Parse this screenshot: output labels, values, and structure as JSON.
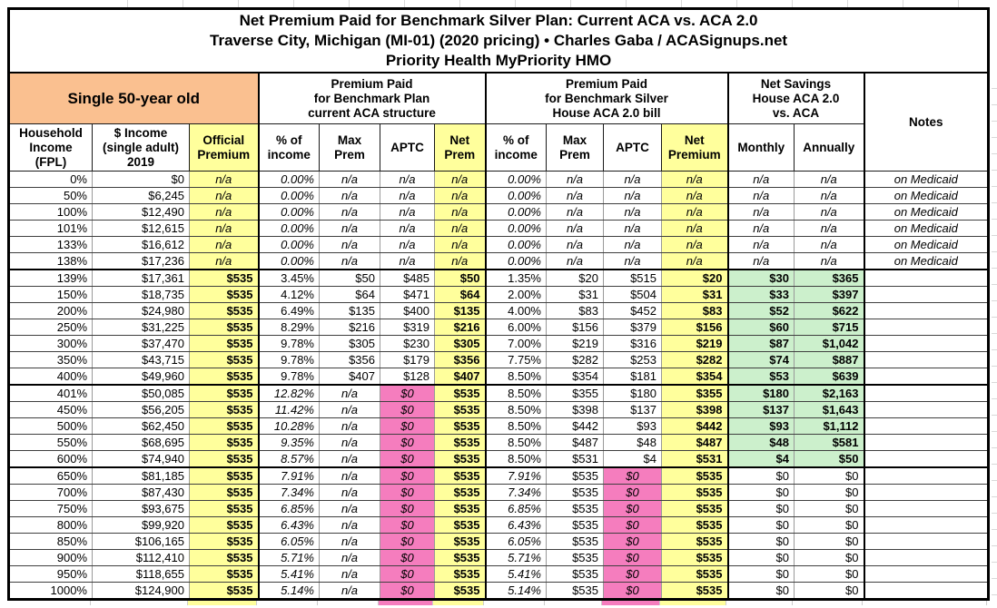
{
  "title": {
    "line1": "Net Premium Paid for Benchmark Silver Plan: Current ACA vs. ACA 2.0",
    "line2": "Traverse City, Michigan (MI-01) (2020 pricing) • Charles Gaba / ACASignups.net",
    "line3": "Priority Health MyPriority HMO"
  },
  "colors": {
    "person_header": "#FAC090",
    "highlight_yellow": "#FFFF9C",
    "highlight_pink": "#F57DBE",
    "savings_green": "#CCF0CC"
  },
  "header": {
    "group_person": "Single 50-year old",
    "group_aca": "Premium Paid\nfor Benchmark Plan\ncurrent ACA structure",
    "group_aca2": "Premium Paid\nfor Benchmark Silver\nHouse ACA 2.0 bill",
    "group_savings": "Net Savings\nHouse ACA 2.0\nvs. ACA",
    "notes": "Notes",
    "columns": [
      "Household\nIncome\n(FPL)",
      "$ Income\n(single adult)\n2019",
      "Official\nPremium",
      "% of\nincome",
      "Max\nPrem",
      "APTC",
      "Net\nPrem",
      "% of\nincome",
      "Max\nPrem",
      "APTC",
      "Net\nPremium",
      "Monthly",
      "Annually"
    ]
  },
  "table": {
    "rows": [
      {
        "band": "medicaid",
        "cells": [
          "0%",
          "$0",
          "n/a",
          "0.00%",
          "n/a",
          "n/a",
          "n/a",
          "0.00%",
          "n/a",
          "n/a",
          "n/a",
          "n/a",
          "n/a",
          "on Medicaid"
        ]
      },
      {
        "band": "medicaid",
        "cells": [
          "50%",
          "$6,245",
          "n/a",
          "0.00%",
          "n/a",
          "n/a",
          "n/a",
          "0.00%",
          "n/a",
          "n/a",
          "n/a",
          "n/a",
          "n/a",
          "on Medicaid"
        ]
      },
      {
        "band": "medicaid",
        "cells": [
          "100%",
          "$12,490",
          "n/a",
          "0.00%",
          "n/a",
          "n/a",
          "n/a",
          "0.00%",
          "n/a",
          "n/a",
          "n/a",
          "n/a",
          "n/a",
          "on Medicaid"
        ]
      },
      {
        "band": "medicaid",
        "cells": [
          "101%",
          "$12,615",
          "n/a",
          "0.00%",
          "n/a",
          "n/a",
          "n/a",
          "0.00%",
          "n/a",
          "n/a",
          "n/a",
          "n/a",
          "n/a",
          "on Medicaid"
        ]
      },
      {
        "band": "medicaid",
        "cells": [
          "133%",
          "$16,612",
          "n/a",
          "0.00%",
          "n/a",
          "n/a",
          "n/a",
          "0.00%",
          "n/a",
          "n/a",
          "n/a",
          "n/a",
          "n/a",
          "on Medicaid"
        ]
      },
      {
        "band": "medicaid",
        "cells": [
          "138%",
          "$17,236",
          "n/a",
          "0.00%",
          "n/a",
          "n/a",
          "n/a",
          "0.00%",
          "n/a",
          "n/a",
          "n/a",
          "n/a",
          "n/a",
          "on Medicaid"
        ]
      },
      {
        "band": "both",
        "cells": [
          "139%",
          "$17,361",
          "$535",
          "3.45%",
          "$50",
          "$485",
          "$50",
          "1.35%",
          "$20",
          "$515",
          "$20",
          "$30",
          "$365",
          ""
        ]
      },
      {
        "band": "both",
        "cells": [
          "150%",
          "$18,735",
          "$535",
          "4.12%",
          "$64",
          "$471",
          "$64",
          "2.00%",
          "$31",
          "$504",
          "$31",
          "$33",
          "$397",
          ""
        ]
      },
      {
        "band": "both",
        "cells": [
          "200%",
          "$24,980",
          "$535",
          "6.49%",
          "$135",
          "$400",
          "$135",
          "4.00%",
          "$83",
          "$452",
          "$83",
          "$52",
          "$622",
          ""
        ]
      },
      {
        "band": "both",
        "cells": [
          "250%",
          "$31,225",
          "$535",
          "8.29%",
          "$216",
          "$319",
          "$216",
          "6.00%",
          "$156",
          "$379",
          "$156",
          "$60",
          "$715",
          ""
        ]
      },
      {
        "band": "both",
        "cells": [
          "300%",
          "$37,470",
          "$535",
          "9.78%",
          "$305",
          "$230",
          "$305",
          "7.00%",
          "$219",
          "$316",
          "$219",
          "$87",
          "$1,042",
          ""
        ]
      },
      {
        "band": "both",
        "cells": [
          "350%",
          "$43,715",
          "$535",
          "9.78%",
          "$356",
          "$179",
          "$356",
          "7.75%",
          "$282",
          "$253",
          "$282",
          "$74",
          "$887",
          ""
        ]
      },
      {
        "band": "both",
        "cells": [
          "400%",
          "$49,960",
          "$535",
          "9.78%",
          "$407",
          "$128",
          "$407",
          "8.50%",
          "$354",
          "$181",
          "$354",
          "$53",
          "$639",
          ""
        ]
      },
      {
        "band": "aca2only",
        "cells": [
          "401%",
          "$50,085",
          "$535",
          "12.82%",
          "n/a",
          "$0",
          "$535",
          "8.50%",
          "$355",
          "$180",
          "$355",
          "$180",
          "$2,163",
          ""
        ]
      },
      {
        "band": "aca2only",
        "cells": [
          "450%",
          "$56,205",
          "$535",
          "11.42%",
          "n/a",
          "$0",
          "$535",
          "8.50%",
          "$398",
          "$137",
          "$398",
          "$137",
          "$1,643",
          ""
        ]
      },
      {
        "band": "aca2only",
        "cells": [
          "500%",
          "$62,450",
          "$535",
          "10.28%",
          "n/a",
          "$0",
          "$535",
          "8.50%",
          "$442",
          "$93",
          "$442",
          "$93",
          "$1,112",
          ""
        ]
      },
      {
        "band": "aca2only",
        "cells": [
          "550%",
          "$68,695",
          "$535",
          "9.35%",
          "n/a",
          "$0",
          "$535",
          "8.50%",
          "$487",
          "$48",
          "$487",
          "$48",
          "$581",
          ""
        ]
      },
      {
        "band": "aca2only",
        "cells": [
          "600%",
          "$74,940",
          "$535",
          "8.57%",
          "n/a",
          "$0",
          "$535",
          "8.50%",
          "$531",
          "$4",
          "$531",
          "$4",
          "$50",
          ""
        ]
      },
      {
        "band": "none",
        "cells": [
          "650%",
          "$81,185",
          "$535",
          "7.91%",
          "n/a",
          "$0",
          "$535",
          "7.91%",
          "$535",
          "$0",
          "$535",
          "$0",
          "$0",
          ""
        ]
      },
      {
        "band": "none",
        "cells": [
          "700%",
          "$87,430",
          "$535",
          "7.34%",
          "n/a",
          "$0",
          "$535",
          "7.34%",
          "$535",
          "$0",
          "$535",
          "$0",
          "$0",
          ""
        ]
      },
      {
        "band": "none",
        "cells": [
          "750%",
          "$93,675",
          "$535",
          "6.85%",
          "n/a",
          "$0",
          "$535",
          "6.85%",
          "$535",
          "$0",
          "$535",
          "$0",
          "$0",
          ""
        ]
      },
      {
        "band": "none",
        "cells": [
          "800%",
          "$99,920",
          "$535",
          "6.43%",
          "n/a",
          "$0",
          "$535",
          "6.43%",
          "$535",
          "$0",
          "$535",
          "$0",
          "$0",
          ""
        ]
      },
      {
        "band": "none",
        "cells": [
          "850%",
          "$106,165",
          "$535",
          "6.05%",
          "n/a",
          "$0",
          "$535",
          "6.05%",
          "$535",
          "$0",
          "$535",
          "$0",
          "$0",
          ""
        ]
      },
      {
        "band": "none",
        "cells": [
          "900%",
          "$112,410",
          "$535",
          "5.71%",
          "n/a",
          "$0",
          "$535",
          "5.71%",
          "$535",
          "$0",
          "$535",
          "$0",
          "$0",
          ""
        ]
      },
      {
        "band": "none",
        "cells": [
          "950%",
          "$118,655",
          "$535",
          "5.41%",
          "n/a",
          "$0",
          "$535",
          "5.41%",
          "$535",
          "$0",
          "$535",
          "$0",
          "$0",
          ""
        ]
      },
      {
        "band": "none",
        "cells": [
          "1000%",
          "$124,900",
          "$535",
          "5.14%",
          "n/a",
          "$0",
          "$535",
          "5.14%",
          "$535",
          "$0",
          "$535",
          "$0",
          "$0",
          ""
        ]
      }
    ]
  }
}
